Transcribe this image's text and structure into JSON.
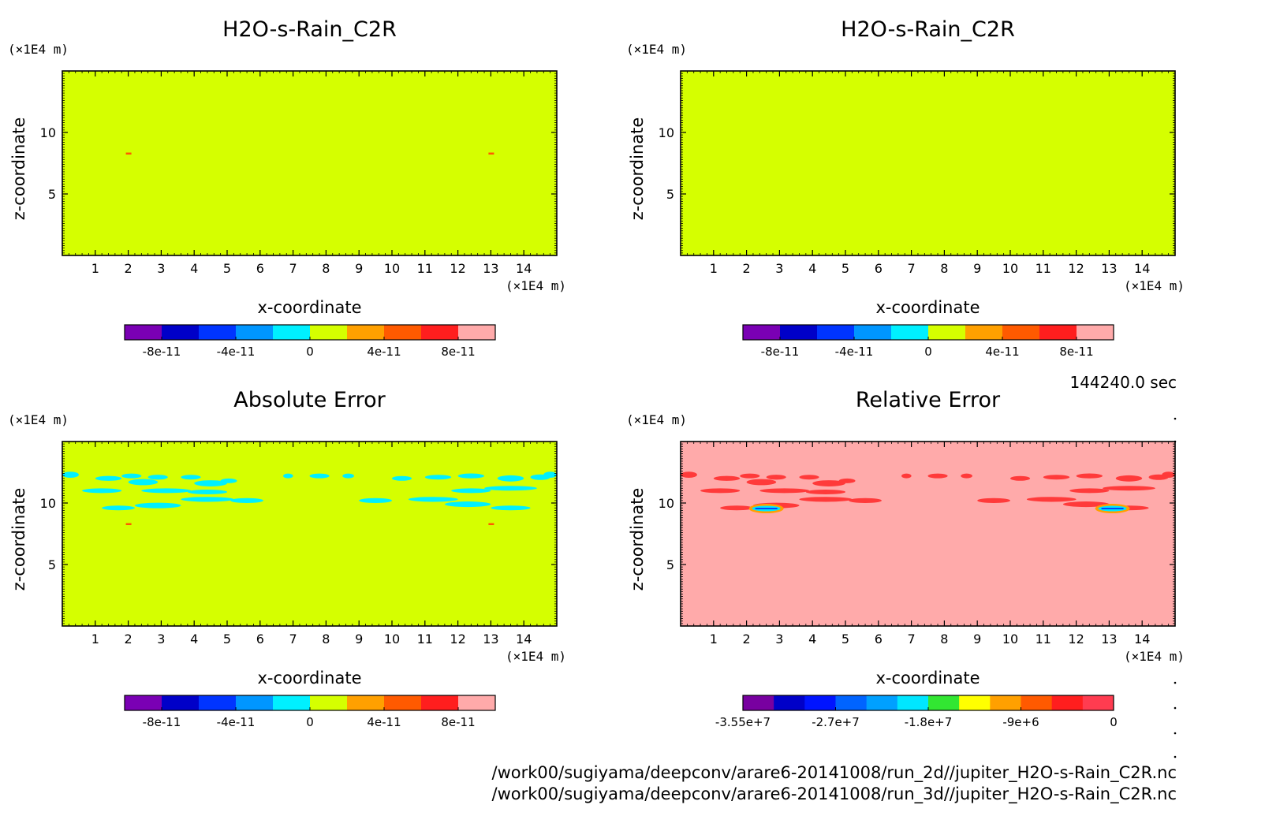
{
  "time_label": "144240.0 sec",
  "file_paths": [
    "/work00/sugiyama/deepconv/arare6-20141008/run_2d//jupiter_H2O-s-Rain_C2R.nc",
    "/work00/sugiyama/deepconv/arare6-20141008/run_3d//jupiter_H2O-s-Rain_C2R.nc"
  ],
  "colors": {
    "bg_2d": "#d5ff00",
    "blob_abs": "#00f0ff",
    "bg_rel": "#ffaaaa",
    "blob_rel": "#ff3a3a",
    "frame": "#000000"
  },
  "chart_data": [
    {
      "type": "heatmap",
      "title": "H2O-s-Rain_C2R",
      "xlabel": "x-coordinate",
      "ylabel": "z-coordinate",
      "x_unit": "(×1E4 m)",
      "y_unit": "(×1E4 m)",
      "xlim": [
        0,
        15
      ],
      "ylim": [
        0,
        15
      ],
      "xticks": [
        1,
        2,
        3,
        4,
        5,
        6,
        7,
        8,
        9,
        10,
        11,
        12,
        13,
        14
      ],
      "yticks": [
        5,
        10
      ],
      "field": "uniform ≈ 0 with small positive spots near x=2 and x=13, z≈8.3",
      "colorbar": {
        "colors": [
          "#7a00b4",
          "#0000c8",
          "#0034ff",
          "#0096ff",
          "#00f0ff",
          "#d5ff00",
          "#ffa000",
          "#ff5a00",
          "#ff1e1e",
          "#ffaaaa"
        ],
        "ticks": [
          "-8e-11",
          "-4e-11",
          "0",
          "4e-11",
          "8e-11"
        ]
      }
    },
    {
      "type": "heatmap",
      "title": "H2O-s-Rain_C2R",
      "xlabel": "x-coordinate",
      "ylabel": "z-coordinate",
      "x_unit": "(×1E4 m)",
      "y_unit": "(×1E4 m)",
      "xlim": [
        0,
        15
      ],
      "ylim": [
        0,
        15
      ],
      "xticks": [
        1,
        2,
        3,
        4,
        5,
        6,
        7,
        8,
        9,
        10,
        11,
        12,
        13,
        14
      ],
      "yticks": [
        5,
        10
      ],
      "field": "uniform ≈ 0",
      "colorbar": {
        "colors": [
          "#7a00b4",
          "#0000c8",
          "#0034ff",
          "#0096ff",
          "#00f0ff",
          "#d5ff00",
          "#ffa000",
          "#ff5a00",
          "#ff1e1e",
          "#ffaaaa"
        ],
        "ticks": [
          "-8e-11",
          "-4e-11",
          "0",
          "4e-11",
          "8e-11"
        ]
      }
    },
    {
      "type": "heatmap",
      "title": "Absolute Error",
      "xlabel": "x-coordinate",
      "ylabel": "z-coordinate",
      "x_unit": "(×1E4 m)",
      "y_unit": "(×1E4 m)",
      "xlim": [
        0,
        15
      ],
      "ylim": [
        0,
        15
      ],
      "xticks": [
        1,
        2,
        3,
        4,
        5,
        6,
        7,
        8,
        9,
        10,
        11,
        12,
        13,
        14
      ],
      "yticks": [
        5,
        10
      ],
      "field": "≈ 0 with small negative patches between z≈9.5 and z≈12.5",
      "colorbar": {
        "colors": [
          "#7a00b4",
          "#0000c8",
          "#0034ff",
          "#0096ff",
          "#00f0ff",
          "#d5ff00",
          "#ffa000",
          "#ff5a00",
          "#ff1e1e",
          "#ffaaaa"
        ],
        "ticks": [
          "-8e-11",
          "-4e-11",
          "0",
          "4e-11",
          "8e-11"
        ]
      }
    },
    {
      "type": "heatmap",
      "title": "Relative Error",
      "xlabel": "x-coordinate",
      "ylabel": "z-coordinate",
      "x_unit": "(×1E4 m)",
      "y_unit": "(×1E4 m)",
      "xlim": [
        0,
        15
      ],
      "ylim": [
        0,
        15
      ],
      "xticks": [
        1,
        2,
        3,
        4,
        5,
        6,
        7,
        8,
        9,
        10,
        11,
        12,
        13,
        14
      ],
      "yticks": [
        5,
        10
      ],
      "field": "≈ 0 with negative patches between z≈9.5 and z≈12.5; strong minimum near x≈2.5 and x≈12.7 at z≈9.5",
      "colorbar": {
        "colors": [
          "#7800a0",
          "#0000c8",
          "#0014ff",
          "#0064ff",
          "#00a0ff",
          "#00e6ff",
          "#32e632",
          "#ffff00",
          "#ffa000",
          "#ff5a00",
          "#ff1e1e",
          "#ff3c50"
        ],
        "ticks": [
          "-3.55e+7",
          "-2.7e+7",
          "-1.8e+7",
          "-9e+6",
          "0"
        ]
      }
    }
  ]
}
